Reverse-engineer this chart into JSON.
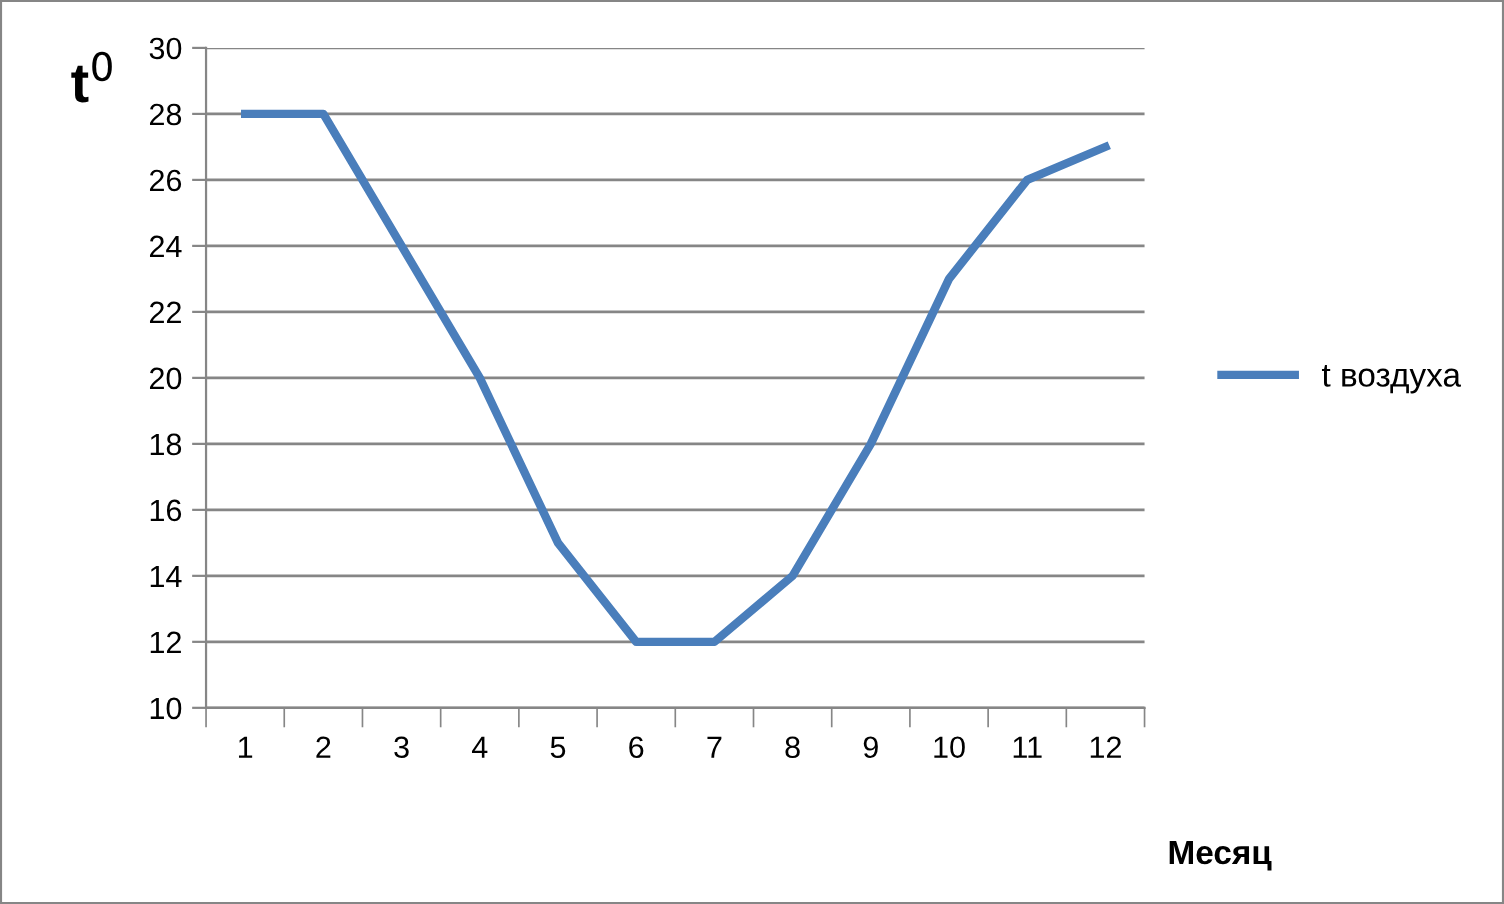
{
  "chart_data": {
    "type": "line",
    "xlabel": "Месяц",
    "ylabel": "t$^{0}$",
    "categories": [
      "1",
      "2",
      "3",
      "4",
      "5",
      "6",
      "7",
      "8",
      "9",
      "10",
      "11",
      "12"
    ],
    "series": [
      {
        "name": "t воздуха",
        "color": "#4a7ebb",
        "values": [
          28,
          28,
          24,
          20,
          15,
          12,
          12,
          14,
          18,
          23,
          26,
          27
        ]
      }
    ],
    "ylim": [
      10,
      30
    ],
    "yticks": [
      10,
      12,
      14,
      16,
      18,
      20,
      22,
      24,
      26,
      28,
      30
    ],
    "grid": "y",
    "legend": "right",
    "marker": "none",
    "line_style": "solid"
  }
}
